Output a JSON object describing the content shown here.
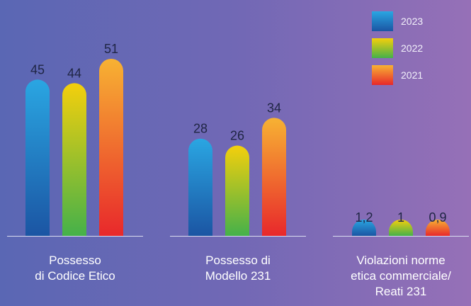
{
  "chart_data": {
    "type": "bar",
    "categories": [
      [
        "Possesso",
        "di Codice Etico"
      ],
      [
        "Possesso di",
        "Modello 231"
      ],
      [
        "Violazioni norme",
        "etica commerciale/",
        "Reati 231"
      ]
    ],
    "series": [
      {
        "name": "2023",
        "values": [
          45,
          28,
          1.2
        ],
        "labels": [
          "45",
          "28",
          "1,2"
        ]
      },
      {
        "name": "2022",
        "values": [
          44,
          26,
          1
        ],
        "labels": [
          "44",
          "26",
          "1"
        ]
      },
      {
        "name": "2021",
        "values": [
          51,
          34,
          0.9
        ],
        "labels": [
          "51",
          "34",
          "0,9"
        ]
      }
    ],
    "ylim": [
      0,
      51
    ],
    "grid": false,
    "legend_position": "top-right",
    "series_colors": [
      {
        "top": "#2aa6e2",
        "bottom": "#1b55a3"
      },
      {
        "top": "#f4cf0c",
        "bottom": "#45b14a"
      },
      {
        "top": "#f7b233",
        "bottom": "#e8282b"
      }
    ],
    "label_color": "#1f2544",
    "category_label_color": "#ffffff"
  }
}
